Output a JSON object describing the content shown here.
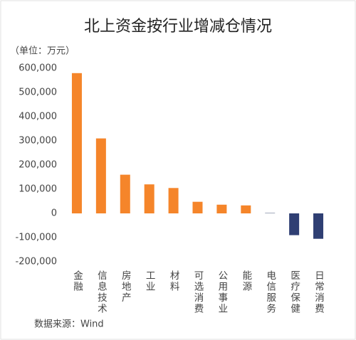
{
  "chart_data": {
    "type": "bar",
    "title": "北上资金按行业增减仓情况",
    "unit_label": "（单位：万元）",
    "source": "数据来源：Wind",
    "categories": [
      "金融",
      "信息技术",
      "房地产",
      "工业",
      "材料",
      "可选消费",
      "公用事业",
      "能源",
      "电信服务",
      "医疗保健",
      "日常消费"
    ],
    "values": [
      580000,
      310000,
      160000,
      120000,
      105000,
      48000,
      36000,
      33000,
      3000,
      -90000,
      -105000
    ],
    "colors": [
      "#f5852a",
      "#f5852a",
      "#f5852a",
      "#f5852a",
      "#f5852a",
      "#f5852a",
      "#f5852a",
      "#f5852a",
      "#a3abbd",
      "#2f3f73",
      "#2f3f73"
    ],
    "ylim": [
      -200000,
      600000
    ],
    "yticks": [
      {
        "value": -200000,
        "label": "-200,000"
      },
      {
        "value": -100000,
        "label": "-100,000"
      },
      0,
      {
        "value": 100000,
        "label": "100,000"
      },
      {
        "value": 200000,
        "label": "200,000"
      },
      {
        "value": 300000,
        "label": "300,000"
      },
      {
        "value": 400000,
        "label": "400,000"
      },
      {
        "value": 500000,
        "label": "500,000"
      },
      {
        "value": 600000,
        "label": "600,000"
      }
    ],
    "grid": false
  }
}
